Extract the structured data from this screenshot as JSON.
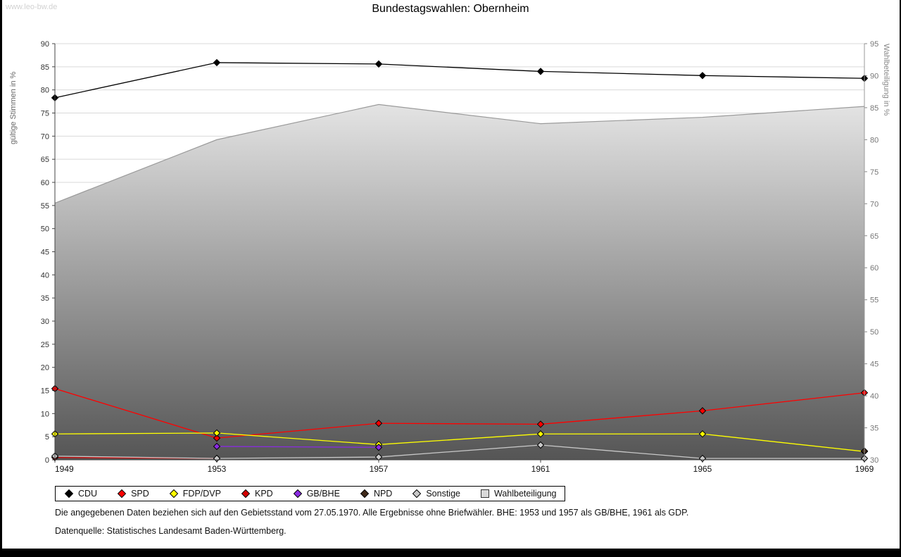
{
  "watermark": "www.leo-bw.de",
  "title": "Bundestagswahlen: Obernheim",
  "footnotes": {
    "line1": "Die angegebenen Daten beziehen sich auf den Gebietsstand vom 27.05.1970. Alle Ergebnisse ohne Briefwähler. BHE: 1953 und 1957 als GB/BHE, 1961 als GDP.",
    "line2": "Datenquelle: Statistisches Landesamt Baden-Württemberg."
  },
  "chart_data": {
    "type": "line",
    "title": "Bundestagswahlen: Obernheim",
    "x": [
      1949,
      1953,
      1957,
      1961,
      1965,
      1969
    ],
    "left_axis": {
      "label": "gültige Stimmen in %",
      "min": 0,
      "max": 90,
      "step": 5
    },
    "right_axis": {
      "label": "Wahlbeteiligung in %",
      "min": 30,
      "max": 95,
      "step": 5
    },
    "grid": true,
    "legend_position": "bottom",
    "series": [
      {
        "name": "CDU",
        "color": "#000000",
        "axis": "left",
        "marker": "diamond",
        "values": [
          78.3,
          85.9,
          85.6,
          84.0,
          83.1,
          82.5
        ]
      },
      {
        "name": "SPD",
        "color": "#ff0000",
        "axis": "left",
        "marker": "diamond",
        "values": [
          15.4,
          4.7,
          7.9,
          7.7,
          10.6,
          14.5
        ]
      },
      {
        "name": "FDP/DVP",
        "color": "#ffff00",
        "axis": "left",
        "marker": "diamond",
        "values": [
          5.6,
          5.8,
          3.3,
          5.6,
          5.6,
          1.8
        ]
      },
      {
        "name": "KPD",
        "color": "#d40000",
        "axis": "left",
        "marker": "diamond",
        "values": [
          0.5,
          0.3,
          null,
          null,
          null,
          null
        ]
      },
      {
        "name": "GB/BHE",
        "color": "#8a2be2",
        "axis": "left",
        "marker": "diamond",
        "values": [
          null,
          2.9,
          2.7,
          null,
          null,
          null
        ]
      },
      {
        "name": "NPD",
        "color": "#402a1a",
        "axis": "left",
        "marker": "diamond",
        "values": [
          null,
          null,
          null,
          null,
          null,
          1.9
        ]
      },
      {
        "name": "Sonstige",
        "color": "#c8c8c8",
        "axis": "left",
        "marker": "diamond",
        "values": [
          0.8,
          0.3,
          0.6,
          3.2,
          0.3,
          0.3
        ]
      },
      {
        "name": "Wahlbeteiligung",
        "color": "#9a9a9a",
        "axis": "right",
        "marker": "square",
        "type": "area",
        "values": [
          70.1,
          80.0,
          85.5,
          82.5,
          83.5,
          85.2
        ]
      }
    ]
  }
}
